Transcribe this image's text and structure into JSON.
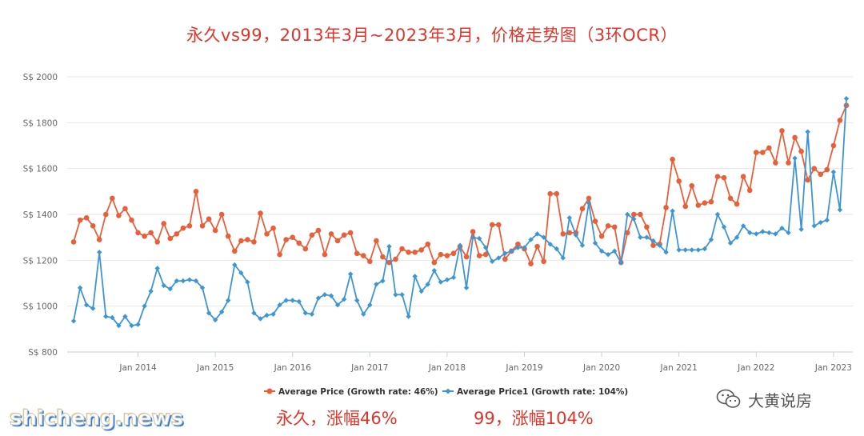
{
  "title": "永久vs99，2013年3月~2023年3月，价格走势图（3环OCR）",
  "annotations": {
    "yongjiu": "永久，涨幅46%",
    "ninety_nine": "99，涨幅104%"
  },
  "watermarks": {
    "left": "shicheng.news",
    "right": "大黄说房",
    "right_icon": "wechat-icon"
  },
  "colors": {
    "series_1": "#e8603a",
    "series_2": "#3d96d3",
    "annotation": "#e0342a",
    "grid": "#e6e6e6"
  },
  "chart_data": {
    "type": "line",
    "title": "永久vs99，2013年3月~2023年3月，价格走势图（3环OCR）",
    "xlabel": "",
    "ylabel": "",
    "x_start": "2013-03",
    "x_end": "2023-03",
    "x_frequency": "monthly",
    "xlim": [
      "2013-02",
      "2023-04"
    ],
    "x_ticks": [
      "Jan 2014",
      "Jan 2015",
      "Jan 2016",
      "Jan 2017",
      "Jan 2018",
      "Jan 2019",
      "Jan 2020",
      "Jan 2021",
      "Jan 2022",
      "Jan 2023"
    ],
    "y_ticks": [
      "S$ 800",
      "S$ 1000",
      "S$ 1200",
      "S$ 1400",
      "S$ 1600",
      "S$ 1800",
      "S$ 2000"
    ],
    "ylim": [
      800,
      2000
    ],
    "grid": "horizontal",
    "legend_position": "bottom",
    "series": [
      {
        "name": "Average Price (Growth rate: 46%)",
        "color": "#e8603a",
        "marker": "circle",
        "values": [
          1280,
          1375,
          1385,
          1350,
          1290,
          1400,
          1470,
          1395,
          1425,
          1375,
          1320,
          1305,
          1320,
          1280,
          1360,
          1295,
          1315,
          1340,
          1350,
          1500,
          1350,
          1380,
          1330,
          1400,
          1305,
          1240,
          1285,
          1290,
          1280,
          1405,
          1315,
          1340,
          1225,
          1290,
          1300,
          1275,
          1250,
          1310,
          1330,
          1225,
          1315,
          1285,
          1310,
          1320,
          1230,
          1220,
          1195,
          1285,
          1215,
          1190,
          1205,
          1250,
          1235,
          1235,
          1245,
          1270,
          1190,
          1225,
          1220,
          1230,
          1260,
          1215,
          1325,
          1220,
          1225,
          1355,
          1355,
          1205,
          1240,
          1270,
          1250,
          1185,
          1260,
          1195,
          1490,
          1490,
          1315,
          1320,
          1320,
          1425,
          1470,
          1370,
          1305,
          1350,
          1345,
          1190,
          1320,
          1400,
          1400,
          1345,
          1265,
          1270,
          1430,
          1640,
          1545,
          1435,
          1525,
          1440,
          1450,
          1455,
          1565,
          1560,
          1470,
          1445,
          1565,
          1505,
          1670,
          1670,
          1690,
          1625,
          1765,
          1625,
          1735,
          1675,
          1550,
          1600,
          1575,
          1595,
          1700,
          1810,
          1875
        ]
      },
      {
        "name": "Average Price1 (Growth rate: 104%)",
        "color": "#3d96d3",
        "marker": "diamond",
        "values": [
          935,
          1080,
          1005,
          990,
          1235,
          955,
          950,
          915,
          955,
          915,
          920,
          1000,
          1065,
          1165,
          1090,
          1075,
          1110,
          1110,
          1115,
          1110,
          1080,
          970,
          940,
          975,
          1025,
          1180,
          1145,
          1105,
          970,
          945,
          960,
          965,
          1005,
          1025,
          1025,
          1020,
          970,
          965,
          1035,
          1050,
          1045,
          1005,
          1030,
          1140,
          1025,
          965,
          1005,
          1095,
          1110,
          1260,
          1050,
          1050,
          955,
          1130,
          1065,
          1095,
          1155,
          1105,
          1115,
          1125,
          1265,
          1080,
          1300,
          1295,
          1255,
          1195,
          1210,
          1230,
          1240,
          1255,
          1255,
          1290,
          1315,
          1300,
          1270,
          1250,
          1210,
          1385,
          1310,
          1265,
          1450,
          1275,
          1240,
          1225,
          1240,
          1190,
          1400,
          1380,
          1300,
          1300,
          1285,
          1265,
          1235,
          1415,
          1245,
          1245,
          1245,
          1245,
          1250,
          1290,
          1400,
          1345,
          1275,
          1300,
          1350,
          1320,
          1315,
          1325,
          1320,
          1315,
          1340,
          1320,
          1645,
          1335,
          1760,
          1350,
          1365,
          1375,
          1585,
          1420,
          1905
        ]
      }
    ]
  }
}
